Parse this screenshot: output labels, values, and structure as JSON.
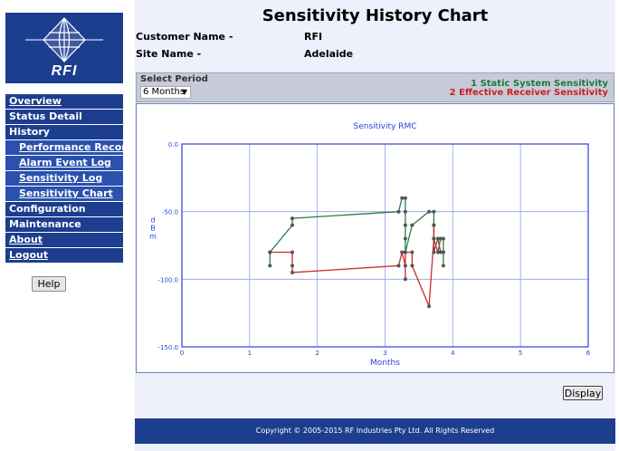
{
  "brand": {
    "logo_text": "RFI",
    "color": "#1d3e8f"
  },
  "sidebar": {
    "items": [
      {
        "label": "Overview",
        "level": 0,
        "link": true
      },
      {
        "label": "Status Detail",
        "level": 0,
        "link": false
      },
      {
        "label": "History",
        "level": 0,
        "link": false
      },
      {
        "label": "Performance Record",
        "level": 1,
        "link": true
      },
      {
        "label": "Alarm Event Log",
        "level": 1,
        "link": true
      },
      {
        "label": "Sensitivity Log",
        "level": 1,
        "link": true
      },
      {
        "label": "Sensitivity Chart",
        "level": 1,
        "link": true
      },
      {
        "label": "Configuration",
        "level": 0,
        "link": false
      },
      {
        "label": "Maintenance",
        "level": 0,
        "link": false
      },
      {
        "label": "About",
        "level": 0,
        "link": true
      },
      {
        "label": "Logout",
        "level": 0,
        "link": true
      }
    ],
    "help_label": "Help"
  },
  "page": {
    "title": "Sensitivity History Chart",
    "customer_label": "Customer Name -",
    "customer_value": "RFI",
    "site_label": "Site Name -",
    "site_value": "Adelaide"
  },
  "period": {
    "label": "Select Period",
    "selected": "6 Months"
  },
  "legend": {
    "item1": "1 Static System Sensitivity",
    "item2": "2 Effective Receiver Sensitivity",
    "color1": "#1e7a3c",
    "color2": "#cc1f1f"
  },
  "chart_data": {
    "type": "line",
    "title": "Sensitivity RMC",
    "xlabel": "Months",
    "ylabel": "dBm",
    "xlim": [
      0,
      6
    ],
    "ylim": [
      -150,
      0
    ],
    "x_ticks": [
      "0",
      "1",
      "2",
      "3",
      "4",
      "5",
      "6"
    ],
    "y_ticks": [
      "0.0",
      "-50.0",
      "-100.0",
      "-150.0"
    ],
    "y_tick_values": [
      0,
      -50,
      -100,
      -150
    ],
    "grid": true,
    "series": [
      {
        "name": "Static System Sensitivity",
        "color": "#2e7d4a",
        "points": [
          [
            1.3,
            -90
          ],
          [
            1.3,
            -80
          ],
          [
            1.63,
            -60
          ],
          [
            1.63,
            -55
          ],
          [
            3.2,
            -50
          ],
          [
            3.25,
            -40
          ],
          [
            3.3,
            -40
          ],
          [
            3.3,
            -50
          ],
          [
            3.3,
            -60
          ],
          [
            3.3,
            -70
          ],
          [
            3.3,
            -80
          ],
          [
            3.4,
            -60
          ],
          [
            3.65,
            -50
          ],
          [
            3.72,
            -50
          ],
          [
            3.72,
            -60
          ],
          [
            3.72,
            -70
          ],
          [
            3.78,
            -80
          ],
          [
            3.82,
            -70
          ],
          [
            3.86,
            -70
          ],
          [
            3.86,
            -80
          ],
          [
            3.86,
            -90
          ]
        ]
      },
      {
        "name": "Effective Receiver Sensitivity",
        "color": "#cc2a2a",
        "points": [
          [
            1.3,
            -80
          ],
          [
            1.63,
            -80
          ],
          [
            1.63,
            -90
          ],
          [
            1.63,
            -95
          ],
          [
            3.2,
            -90
          ],
          [
            3.25,
            -80
          ],
          [
            3.3,
            -90
          ],
          [
            3.3,
            -100
          ],
          [
            3.3,
            -80
          ],
          [
            3.4,
            -80
          ],
          [
            3.4,
            -90
          ],
          [
            3.65,
            -120
          ],
          [
            3.72,
            -70
          ],
          [
            3.72,
            -60
          ],
          [
            3.72,
            -80
          ],
          [
            3.78,
            -70
          ],
          [
            3.82,
            -80
          ],
          [
            3.86,
            -80
          ]
        ]
      }
    ]
  },
  "actions": {
    "display_label": "Display"
  },
  "footer": {
    "copyright": "Copyright © 2005-2015 RF Industries Pty Ltd. All Rights Reserved"
  }
}
